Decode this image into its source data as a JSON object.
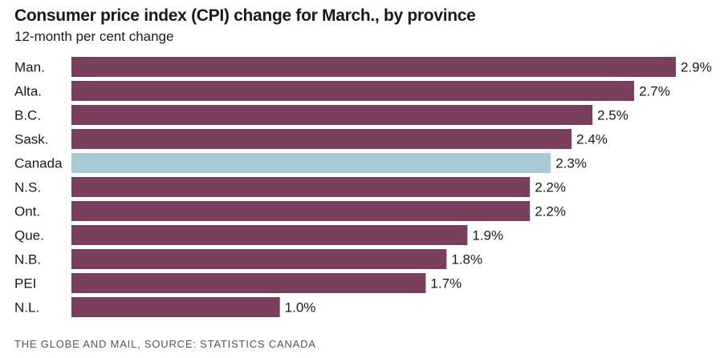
{
  "chart_data": {
    "type": "bar",
    "orientation": "horizontal",
    "title": "Consumer price index (CPI) change for March., by province",
    "subtitle": "12-month per cent change",
    "categories": [
      "Man.",
      "Alta.",
      "B.C.",
      "Sask.",
      "Canada",
      "N.S.",
      "Ont.",
      "Que.",
      "N.B.",
      "PEI",
      "N.L."
    ],
    "values": [
      2.9,
      2.7,
      2.5,
      2.4,
      2.3,
      2.2,
      2.2,
      1.9,
      1.8,
      1.7,
      1.0
    ],
    "value_labels": [
      "2.9%",
      "2.7%",
      "2.5%",
      "2.4%",
      "2.3%",
      "2.2%",
      "2.2%",
      "1.9%",
      "1.8%",
      "1.7%",
      "1.0%"
    ],
    "highlight": "Canada",
    "xlim": [
      0,
      2.9
    ],
    "grid": false,
    "source": "THE GLOBE AND MAIL, SOURCE: STATISTICS CANADA"
  },
  "colors": {
    "bar": "#7a3f5e",
    "highlight": "#a7cad4",
    "text": "#1a1a1a"
  }
}
